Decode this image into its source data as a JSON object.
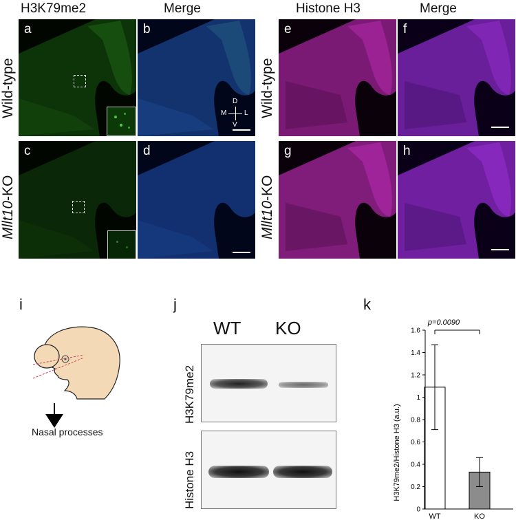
{
  "columns": {
    "h3k79": "H3K79me2",
    "merge1": "Merge",
    "histone": "Histone H3",
    "merge2": "Merge"
  },
  "rows": {
    "wt": "Wild-type",
    "ko_gene": "Mllt10",
    "ko_suffix": "-KO"
  },
  "panels": {
    "a": "a",
    "b": "b",
    "c": "c",
    "d": "d",
    "e": "e",
    "f": "f",
    "g": "g",
    "h": "h",
    "i": "i",
    "j": "j",
    "k": "k"
  },
  "compass": {
    "d": "D",
    "v": "V",
    "m": "M",
    "l": "L"
  },
  "colors": {
    "green": "#2f8a2a",
    "blue": "#2a4fa0",
    "magenta": "#c02ab8",
    "purple": "#9a2ad0",
    "skin": "#f3d9b6"
  },
  "schematic": {
    "caption": "Nasal processes"
  },
  "blot": {
    "wt": "WT",
    "ko": "KO",
    "top_label": "H3K79me2",
    "bottom_label": "Histone H3"
  },
  "chart_data": {
    "type": "bar",
    "categories": [
      "WT",
      "KO"
    ],
    "values": [
      1.09,
      0.33
    ],
    "errors": [
      0.38,
      0.13
    ],
    "ylabel": "H3K79me2/Histone H3 (a.u.)",
    "ylim": [
      0,
      1.6
    ],
    "yticks": [
      "0",
      "0.2",
      "0.4",
      "0.6",
      "0.8",
      "1",
      "1.2",
      "1.4",
      "1.6"
    ],
    "annotation": "p=0.0090",
    "bar_colors": [
      "#ffffff",
      "#8c8c8c"
    ]
  }
}
